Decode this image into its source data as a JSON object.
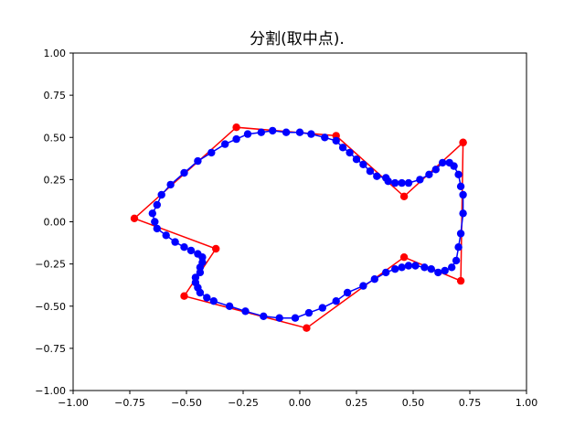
{
  "chart_data": {
    "type": "line",
    "title": "分割(取中点).",
    "xlabel": "",
    "ylabel": "",
    "xlim": [
      -1.0,
      1.0
    ],
    "ylim": [
      -1.0,
      1.0
    ],
    "grid": false,
    "x_ticks": [
      "−1.00",
      "−0.75",
      "−0.50",
      "−0.25",
      "0.00",
      "0.25",
      "0.50",
      "0.75",
      "1.00"
    ],
    "y_ticks": [
      "−1.00",
      "−0.75",
      "−0.50",
      "−0.25",
      "0.00",
      "0.25",
      "0.50",
      "0.75",
      "1.00"
    ],
    "colors": {
      "control": "#ff0000",
      "curve": "#0000ff"
    },
    "series": [
      {
        "color": "#ff0000",
        "style": "line-with-markers",
        "points": [
          [
            0.72,
            0.47
          ],
          [
            0.71,
            -0.35
          ],
          [
            0.46,
            -0.21
          ],
          [
            0.03,
            -0.63
          ],
          [
            -0.51,
            -0.44
          ],
          [
            -0.37,
            -0.16
          ],
          [
            -0.73,
            0.02
          ],
          [
            -0.28,
            0.56
          ],
          [
            0.16,
            0.51
          ],
          [
            0.46,
            0.15
          ],
          [
            0.72,
            0.47
          ]
        ]
      },
      {
        "color": "#0000ff",
        "style": "line-with-markers",
        "points": [
          [
            0.72,
            0.16
          ],
          [
            0.72,
            0.05
          ],
          [
            0.71,
            -0.07
          ],
          [
            0.7,
            -0.15
          ],
          [
            0.69,
            -0.23
          ],
          [
            0.67,
            -0.27
          ],
          [
            0.64,
            -0.29
          ],
          [
            0.61,
            -0.3
          ],
          [
            0.58,
            -0.28
          ],
          [
            0.55,
            -0.27
          ],
          [
            0.51,
            -0.26
          ],
          [
            0.48,
            -0.26
          ],
          [
            0.45,
            -0.27
          ],
          [
            0.42,
            -0.28
          ],
          [
            0.38,
            -0.3
          ],
          [
            0.33,
            -0.34
          ],
          [
            0.28,
            -0.38
          ],
          [
            0.21,
            -0.42
          ],
          [
            0.16,
            -0.47
          ],
          [
            0.1,
            -0.51
          ],
          [
            0.04,
            -0.54
          ],
          [
            -0.02,
            -0.57
          ],
          [
            -0.09,
            -0.57
          ],
          [
            -0.16,
            -0.56
          ],
          [
            -0.24,
            -0.53
          ],
          [
            -0.31,
            -0.5
          ],
          [
            -0.38,
            -0.47
          ],
          [
            -0.41,
            -0.45
          ],
          [
            -0.44,
            -0.42
          ],
          [
            -0.45,
            -0.39
          ],
          [
            -0.46,
            -0.36
          ],
          [
            -0.46,
            -0.33
          ],
          [
            -0.44,
            -0.3
          ],
          [
            -0.44,
            -0.27
          ],
          [
            -0.43,
            -0.24
          ],
          [
            -0.43,
            -0.21
          ],
          [
            -0.45,
            -0.19
          ],
          [
            -0.48,
            -0.17
          ],
          [
            -0.51,
            -0.15
          ],
          [
            -0.55,
            -0.12
          ],
          [
            -0.59,
            -0.08
          ],
          [
            -0.63,
            -0.04
          ],
          [
            -0.64,
            0.0
          ],
          [
            -0.65,
            0.05
          ],
          [
            -0.63,
            0.1
          ],
          [
            -0.61,
            0.16
          ],
          [
            -0.57,
            0.22
          ],
          [
            -0.51,
            0.29
          ],
          [
            -0.45,
            0.36
          ],
          [
            -0.39,
            0.41
          ],
          [
            -0.33,
            0.46
          ],
          [
            -0.28,
            0.49
          ],
          [
            -0.23,
            0.52
          ],
          [
            -0.17,
            0.53
          ],
          [
            -0.12,
            0.54
          ],
          [
            -0.06,
            0.53
          ],
          [
            0.0,
            0.53
          ],
          [
            0.05,
            0.52
          ],
          [
            0.11,
            0.5
          ],
          [
            0.16,
            0.48
          ],
          [
            0.19,
            0.44
          ],
          [
            0.22,
            0.41
          ],
          [
            0.25,
            0.37
          ],
          [
            0.28,
            0.34
          ],
          [
            0.31,
            0.3
          ],
          [
            0.34,
            0.27
          ],
          [
            0.38,
            0.26
          ],
          [
            0.39,
            0.24
          ],
          [
            0.42,
            0.23
          ],
          [
            0.45,
            0.23
          ],
          [
            0.48,
            0.23
          ],
          [
            0.53,
            0.25
          ],
          [
            0.57,
            0.28
          ],
          [
            0.6,
            0.31
          ],
          [
            0.63,
            0.35
          ],
          [
            0.66,
            0.35
          ],
          [
            0.68,
            0.33
          ],
          [
            0.7,
            0.28
          ],
          [
            0.71,
            0.21
          ]
        ]
      }
    ]
  }
}
